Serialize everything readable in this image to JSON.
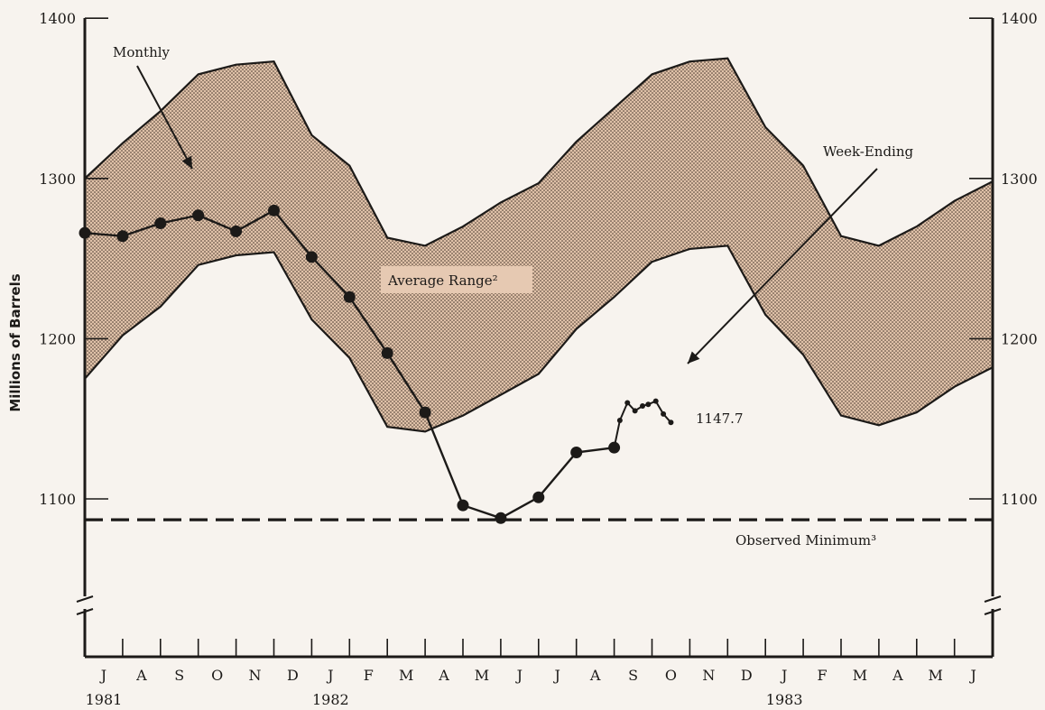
{
  "chart_data": {
    "type": "area",
    "ylabel": "Millions of Barrels",
    "ylim": [
      1100,
      1400
    ],
    "y_ticks": [
      "1100",
      "1200",
      "1300",
      "1400"
    ],
    "x_categories": [
      "J",
      "A",
      "S",
      "O",
      "N",
      "D",
      "J",
      "F",
      "M",
      "A",
      "M",
      "J",
      "J",
      "A",
      "S",
      "O",
      "N",
      "D",
      "J",
      "F",
      "M",
      "A",
      "M",
      "J"
    ],
    "years": [
      {
        "label": "1981",
        "index": 0
      },
      {
        "label": "1982",
        "index": 6
      },
      {
        "label": "1983",
        "index": 18
      }
    ],
    "average_range": {
      "label": "Average Range²",
      "upper": [
        1300,
        1322,
        1342,
        1365,
        1371,
        1373,
        1327,
        1308,
        1263,
        1258,
        1270,
        1285,
        1297,
        1323,
        1344,
        1365,
        1373,
        1375,
        1332,
        1308,
        1264,
        1258,
        1270,
        1286,
        1298
      ],
      "lower": [
        1175,
        1202,
        1220,
        1246,
        1252,
        1254,
        1212,
        1188,
        1145,
        1142,
        1152,
        1165,
        1178,
        1206,
        1226,
        1248,
        1256,
        1258,
        1215,
        1190,
        1152,
        1146,
        1154,
        1170,
        1182
      ]
    },
    "monthly": {
      "label": "Monthly",
      "x": [
        0,
        1,
        2,
        3,
        4,
        5,
        6,
        7,
        8,
        9,
        10,
        11,
        12,
        13,
        14
      ],
      "values": [
        1266,
        1264,
        1272,
        1277,
        1267,
        1280,
        1251,
        1226,
        1191,
        1154,
        1096,
        1088,
        1101,
        1129,
        1132
      ]
    },
    "week_ending": {
      "label": "Week-Ending",
      "x": [
        14.0,
        14.15,
        14.35,
        14.55,
        14.75,
        14.9,
        15.1,
        15.3,
        15.5
      ],
      "values": [
        1132,
        1149,
        1160,
        1155,
        1158,
        1159,
        1161,
        1153,
        1147.7
      ]
    },
    "last_value_label": "1147.7",
    "observed_minimum": {
      "label": "Observed Minimum³",
      "value": 1087
    }
  }
}
